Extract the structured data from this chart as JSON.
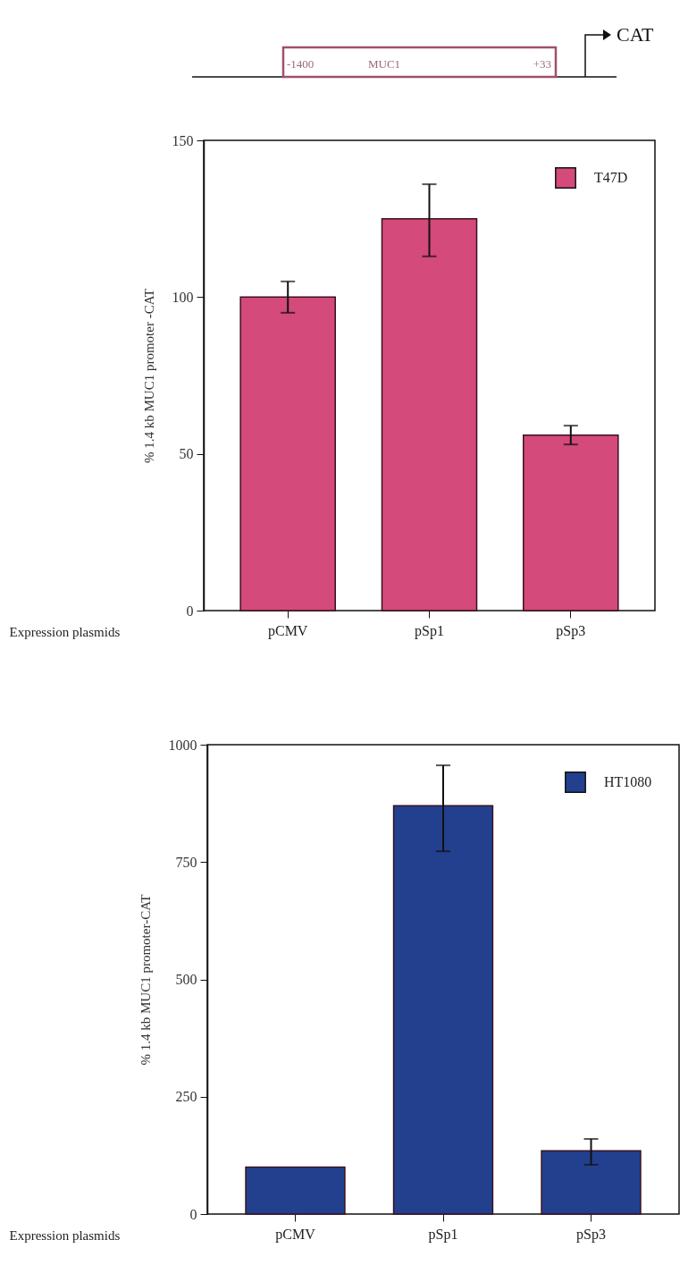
{
  "chart_data": [
    {
      "type": "bar",
      "ylabel": "% 1.4 kb MUC1 promoter -CAT",
      "xlabel": "Expression plasmids",
      "categories": [
        "pCMV",
        "pSp1",
        "pSp3"
      ],
      "series": [
        {
          "name": "T47D",
          "color": "#d44a7a",
          "values": [
            100,
            125,
            56
          ],
          "errors": [
            [
              95,
              105
            ],
            [
              113,
              136
            ],
            [
              53,
              59
            ]
          ]
        }
      ],
      "ylim": [
        0,
        150
      ],
      "yticks": [
        0,
        50,
        100,
        150
      ],
      "legend": "top right",
      "annotations": [
        "-1400",
        "MUC1",
        "+33",
        "CAT"
      ]
    },
    {
      "type": "bar",
      "ylabel": "% 1.4 kb MUC1 promoter-CAT",
      "xlabel": "Expression plasmids",
      "categories": [
        "pCMV",
        "pSp1",
        "pSp3"
      ],
      "series": [
        {
          "name": "HT1080",
          "color": "#23408f",
          "values": [
            100,
            870,
            135
          ],
          "errors": [
            null,
            [
              773,
              956
            ],
            [
              105,
              160
            ]
          ]
        }
      ],
      "ylim": [
        0,
        1000
      ],
      "yticks": [
        0,
        250,
        500,
        750,
        1000
      ],
      "legend": "top right"
    }
  ]
}
